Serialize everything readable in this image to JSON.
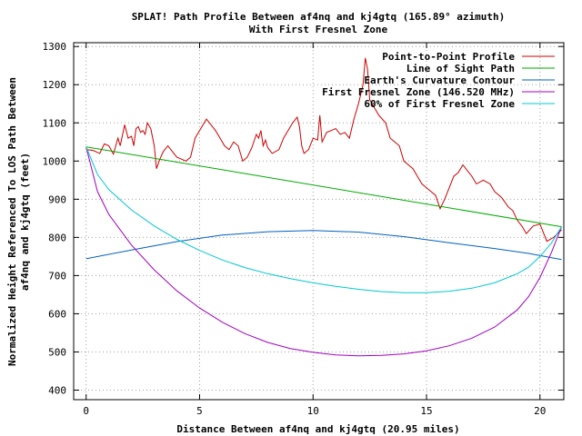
{
  "chart_data": {
    "type": "line",
    "title": "SPLAT! Path Profile Between af4nq and kj4gtq (165.89° azimuth)",
    "subtitle": "With First Fresnel Zone",
    "xlabel": "Distance Between af4nq and kj4gtq (20.95 miles)",
    "ylabel_line1": "Normalized Height Referenced To LOS Path Between",
    "ylabel_line2": "af4nq and kj4gtq (feet)",
    "xlim": [
      -0.55,
      21.05
    ],
    "ylim": [
      375,
      1310
    ],
    "xticks": [
      0,
      5,
      10,
      15,
      20
    ],
    "yticks": [
      400,
      500,
      600,
      700,
      800,
      900,
      1000,
      1100,
      1200,
      1300
    ],
    "grid": true,
    "legend_position": "top-right",
    "series": [
      {
        "name": "Point-to-Point Profile",
        "color": "#cc0000",
        "points": [
          [
            0,
            1030
          ],
          [
            0.3,
            1028
          ],
          [
            0.6,
            1020
          ],
          [
            0.8,
            1045
          ],
          [
            1.0,
            1040
          ],
          [
            1.2,
            1018
          ],
          [
            1.4,
            1060
          ],
          [
            1.5,
            1040
          ],
          [
            1.7,
            1095
          ],
          [
            1.85,
            1060
          ],
          [
            2.0,
            1065
          ],
          [
            2.1,
            1040
          ],
          [
            2.2,
            1085
          ],
          [
            2.3,
            1090
          ],
          [
            2.4,
            1075
          ],
          [
            2.5,
            1080
          ],
          [
            2.6,
            1070
          ],
          [
            2.7,
            1100
          ],
          [
            2.85,
            1085
          ],
          [
            3.0,
            1040
          ],
          [
            3.1,
            980
          ],
          [
            3.25,
            1005
          ],
          [
            3.4,
            1025
          ],
          [
            3.6,
            1040
          ],
          [
            3.8,
            1025
          ],
          [
            4.0,
            1010
          ],
          [
            4.2,
            1005
          ],
          [
            4.4,
            1000
          ],
          [
            4.6,
            1010
          ],
          [
            4.8,
            1060
          ],
          [
            5.0,
            1080
          ],
          [
            5.3,
            1110
          ],
          [
            5.5,
            1095
          ],
          [
            5.7,
            1080
          ],
          [
            5.9,
            1060
          ],
          [
            6.1,
            1040
          ],
          [
            6.3,
            1030
          ],
          [
            6.5,
            1050
          ],
          [
            6.7,
            1040
          ],
          [
            6.9,
            1000
          ],
          [
            7.1,
            1010
          ],
          [
            7.3,
            1035
          ],
          [
            7.5,
            1070
          ],
          [
            7.6,
            1060
          ],
          [
            7.7,
            1080
          ],
          [
            7.8,
            1040
          ],
          [
            7.9,
            1055
          ],
          [
            8.0,
            1035
          ],
          [
            8.2,
            1020
          ],
          [
            8.5,
            1030
          ],
          [
            8.7,
            1060
          ],
          [
            8.9,
            1080
          ],
          [
            9.1,
            1100
          ],
          [
            9.3,
            1115
          ],
          [
            9.4,
            1090
          ],
          [
            9.5,
            1040
          ],
          [
            9.6,
            1020
          ],
          [
            9.8,
            1030
          ],
          [
            10.0,
            1060
          ],
          [
            10.2,
            1055
          ],
          [
            10.3,
            1120
          ],
          [
            10.4,
            1050
          ],
          [
            10.6,
            1075
          ],
          [
            10.8,
            1080
          ],
          [
            11.0,
            1085
          ],
          [
            11.2,
            1070
          ],
          [
            11.4,
            1075
          ],
          [
            11.6,
            1060
          ],
          [
            11.8,
            1110
          ],
          [
            12.0,
            1150
          ],
          [
            12.2,
            1200
          ],
          [
            12.3,
            1270
          ],
          [
            12.4,
            1240
          ],
          [
            12.5,
            1160
          ],
          [
            12.7,
            1140
          ],
          [
            12.9,
            1120
          ],
          [
            13.2,
            1100
          ],
          [
            13.4,
            1060
          ],
          [
            13.6,
            1050
          ],
          [
            13.8,
            1040
          ],
          [
            14.0,
            1000
          ],
          [
            14.2,
            990
          ],
          [
            14.4,
            980
          ],
          [
            14.6,
            960
          ],
          [
            14.8,
            940
          ],
          [
            15.0,
            930
          ],
          [
            15.2,
            920
          ],
          [
            15.4,
            910
          ],
          [
            15.6,
            875
          ],
          [
            15.8,
            900
          ],
          [
            16.0,
            930
          ],
          [
            16.2,
            960
          ],
          [
            16.4,
            970
          ],
          [
            16.6,
            990
          ],
          [
            16.8,
            975
          ],
          [
            17.0,
            960
          ],
          [
            17.2,
            940
          ],
          [
            17.5,
            950
          ],
          [
            17.8,
            940
          ],
          [
            18.0,
            920
          ],
          [
            18.3,
            905
          ],
          [
            18.6,
            880
          ],
          [
            18.8,
            870
          ],
          [
            19.0,
            845
          ],
          [
            19.2,
            830
          ],
          [
            19.4,
            810
          ],
          [
            19.7,
            830
          ],
          [
            20.0,
            835
          ],
          [
            20.3,
            790
          ],
          [
            20.6,
            800
          ],
          [
            20.95,
            820
          ]
        ]
      },
      {
        "name": "Line of Sight Path",
        "color": "#00aa00",
        "points": [
          [
            0,
            1037
          ],
          [
            20.95,
            828
          ]
        ]
      },
      {
        "name": "Earth's Curvature Contour",
        "color": "#0060c0",
        "points": [
          [
            0,
            744
          ],
          [
            2,
            767
          ],
          [
            4,
            789
          ],
          [
            6,
            806
          ],
          [
            8,
            815
          ],
          [
            10,
            818
          ],
          [
            12,
            814
          ],
          [
            14,
            802
          ],
          [
            16,
            786
          ],
          [
            18,
            771
          ],
          [
            19.5,
            758
          ],
          [
            20.95,
            742
          ]
        ]
      },
      {
        "name": "First Fresnel Zone (146.520 MHz)",
        "color": "#a000c0",
        "points": [
          [
            0,
            1037
          ],
          [
            0.5,
            920
          ],
          [
            1,
            860
          ],
          [
            2,
            780
          ],
          [
            3,
            715
          ],
          [
            4,
            660
          ],
          [
            5,
            615
          ],
          [
            6,
            578
          ],
          [
            7,
            548
          ],
          [
            8,
            525
          ],
          [
            9,
            509
          ],
          [
            10,
            499
          ],
          [
            11,
            492
          ],
          [
            12,
            490
          ],
          [
            13,
            491
          ],
          [
            14,
            495
          ],
          [
            15,
            503
          ],
          [
            16,
            516
          ],
          [
            17,
            536
          ],
          [
            18,
            565
          ],
          [
            19,
            610
          ],
          [
            19.5,
            645
          ],
          [
            20,
            695
          ],
          [
            20.5,
            760
          ],
          [
            20.95,
            828
          ]
        ]
      },
      {
        "name": "60% of First Fresnel Zone",
        "color": "#00c8d0",
        "points": [
          [
            0,
            1037
          ],
          [
            0.5,
            965
          ],
          [
            1,
            925
          ],
          [
            2,
            872
          ],
          [
            3,
            830
          ],
          [
            4,
            795
          ],
          [
            5,
            766
          ],
          [
            6,
            741
          ],
          [
            7,
            721
          ],
          [
            8,
            705
          ],
          [
            9,
            692
          ],
          [
            10,
            681
          ],
          [
            11,
            672
          ],
          [
            12,
            664
          ],
          [
            13,
            658
          ],
          [
            14,
            655
          ],
          [
            15,
            655
          ],
          [
            16,
            659
          ],
          [
            17,
            667
          ],
          [
            18,
            681
          ],
          [
            19,
            705
          ],
          [
            19.5,
            722
          ],
          [
            20,
            750
          ],
          [
            20.5,
            785
          ],
          [
            20.95,
            828
          ]
        ]
      }
    ]
  }
}
